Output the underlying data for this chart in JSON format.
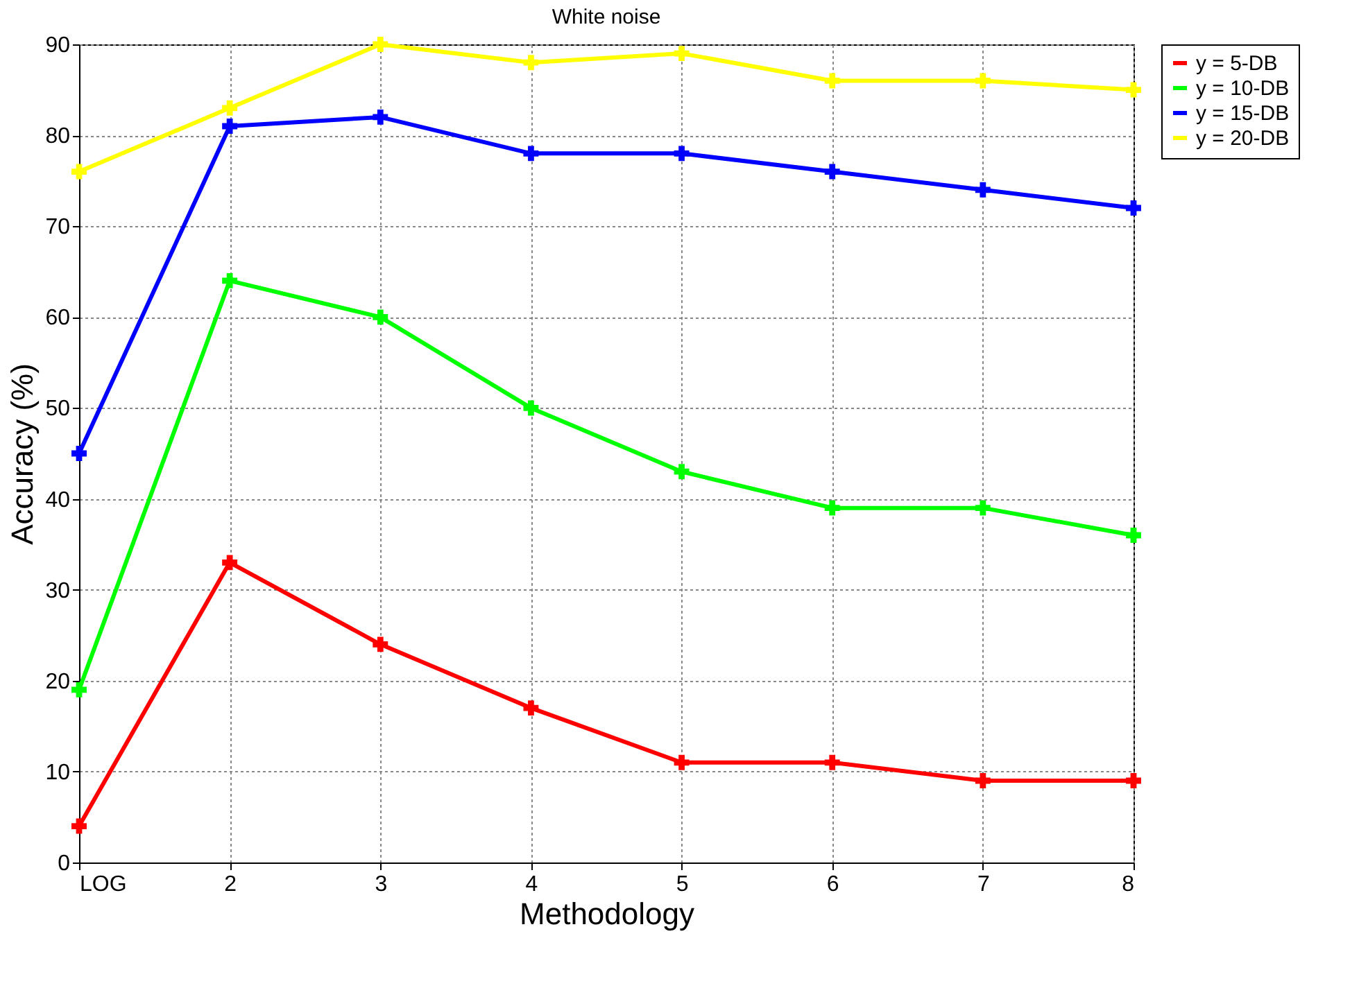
{
  "chart_data": {
    "type": "line",
    "title": "White noise",
    "xlabel": "Methodology",
    "ylabel": "Accuracy (%)",
    "categories": [
      "LOG",
      "2",
      "3",
      "4",
      "5",
      "6",
      "7",
      "8"
    ],
    "series": [
      {
        "name": "y = 5-DB",
        "color": "#ff0000",
        "values": [
          4,
          33,
          24,
          17,
          11,
          11,
          9,
          9
        ]
      },
      {
        "name": "y = 10-DB",
        "color": "#00ff00",
        "values": [
          19,
          64,
          60,
          50,
          43,
          39,
          39,
          36
        ]
      },
      {
        "name": "y = 15-DB",
        "color": "#0000ff",
        "values": [
          45,
          81,
          82,
          78,
          78,
          76,
          74,
          72
        ]
      },
      {
        "name": "y = 20-DB",
        "color": "#ffff00",
        "values": [
          76,
          83,
          90,
          88,
          89,
          86,
          86,
          85
        ]
      }
    ],
    "ylim": [
      0,
      90
    ],
    "yticks": [
      0,
      10,
      20,
      30,
      40,
      50,
      60,
      70,
      80,
      90
    ],
    "grid": true,
    "legend": "top right",
    "marker": "cross",
    "line_style": "solid"
  }
}
